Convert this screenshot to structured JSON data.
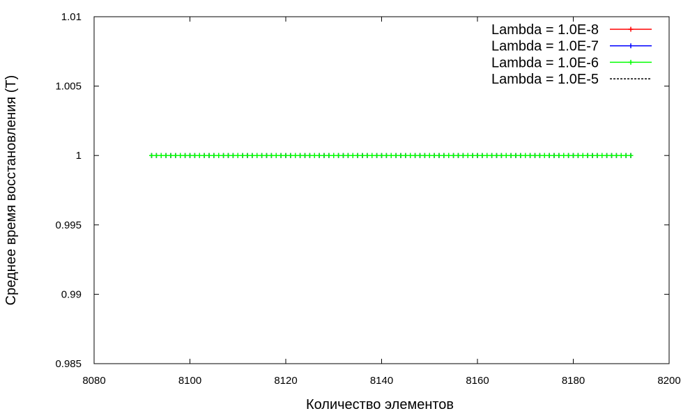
{
  "chart_data": {
    "type": "line",
    "title": "",
    "xlabel": "Количество элементов",
    "ylabel": "Среднее время восстановления (T)",
    "xlim": [
      8080,
      8200
    ],
    "ylim": [
      0.985,
      1.01
    ],
    "xticks": [
      8080,
      8100,
      8120,
      8140,
      8160,
      8180,
      8200
    ],
    "xtick_labels": [
      "8080",
      "8100",
      "8120",
      "8140",
      "8160",
      "8180",
      "8200"
    ],
    "yticks": [
      0.985,
      0.99,
      0.995,
      1,
      1.005,
      1.01
    ],
    "ytick_labels": [
      "0.985",
      "0.99",
      "0.995",
      "1",
      "1.005",
      "1.01"
    ],
    "x_range": {
      "start": 8092,
      "end": 8192,
      "step": 1
    },
    "grid": false,
    "legend_position": "top-right",
    "series": [
      {
        "name": "Lambda = 1.0E-8",
        "color": "#ff0000",
        "style": "solid",
        "marker": "plus",
        "value": 1
      },
      {
        "name": "Lambda = 1.0E-7",
        "color": "#0000ff",
        "style": "solid",
        "marker": "plus",
        "value": 1
      },
      {
        "name": "Lambda = 1.0E-6",
        "color": "#00ff00",
        "style": "solid",
        "marker": "plus",
        "value": 1
      },
      {
        "name": "Lambda = 1.0E-5",
        "color": "#000000",
        "style": "dashed",
        "marker": "none",
        "value": 1
      }
    ]
  }
}
